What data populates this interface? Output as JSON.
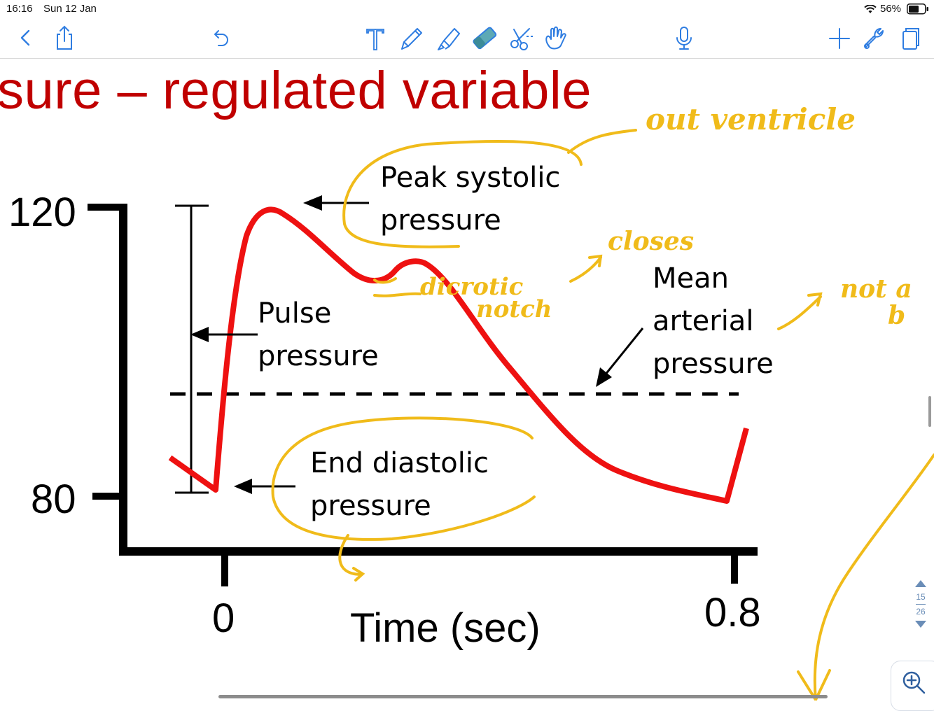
{
  "status_bar": {
    "time": "16:16",
    "date": "Sun 12 Jan",
    "battery_percent": "56%"
  },
  "toolbar": {
    "icons": [
      "back-icon",
      "share-icon",
      "undo-icon",
      "text-tool-icon",
      "pen-icon",
      "highlighter-icon",
      "eraser-icon",
      "lasso-scissors-icon",
      "hand-pointer-icon",
      "microphone-icon",
      "add-icon",
      "wrench-icon",
      "page-view-icon"
    ]
  },
  "slide": {
    "title": "sure – regulated variable",
    "labels": {
      "peak_systolic_line1": "Peak systolic",
      "peak_systolic_line2": "pressure",
      "pulse_pressure_line1": "Pulse",
      "pulse_pressure_line2": "pressure",
      "mean_arterial_line1": "Mean",
      "mean_arterial_line2": "arterial",
      "mean_arterial_line3": "pressure",
      "end_diastolic_line1": "End diastolic",
      "end_diastolic_line2": "pressure"
    },
    "axis": {
      "y_tick_high": "120",
      "y_tick_low": "80",
      "x_tick_start": "0",
      "x_tick_end": "0.8",
      "x_label": "Time (sec)"
    },
    "colors": {
      "title": "#c00000",
      "curve": "#ee1111",
      "annotation": "#f0bb1a"
    }
  },
  "annotations": {
    "out_ventricle": "out ventricle",
    "closes": "closes",
    "dicrotic_notch_line1": "dicrotic",
    "dicrotic_notch_line2": "notch",
    "not_av_line1": "not a",
    "not_av_line2": "b"
  },
  "navigation": {
    "current_page": "15",
    "total_pages": "26"
  }
}
